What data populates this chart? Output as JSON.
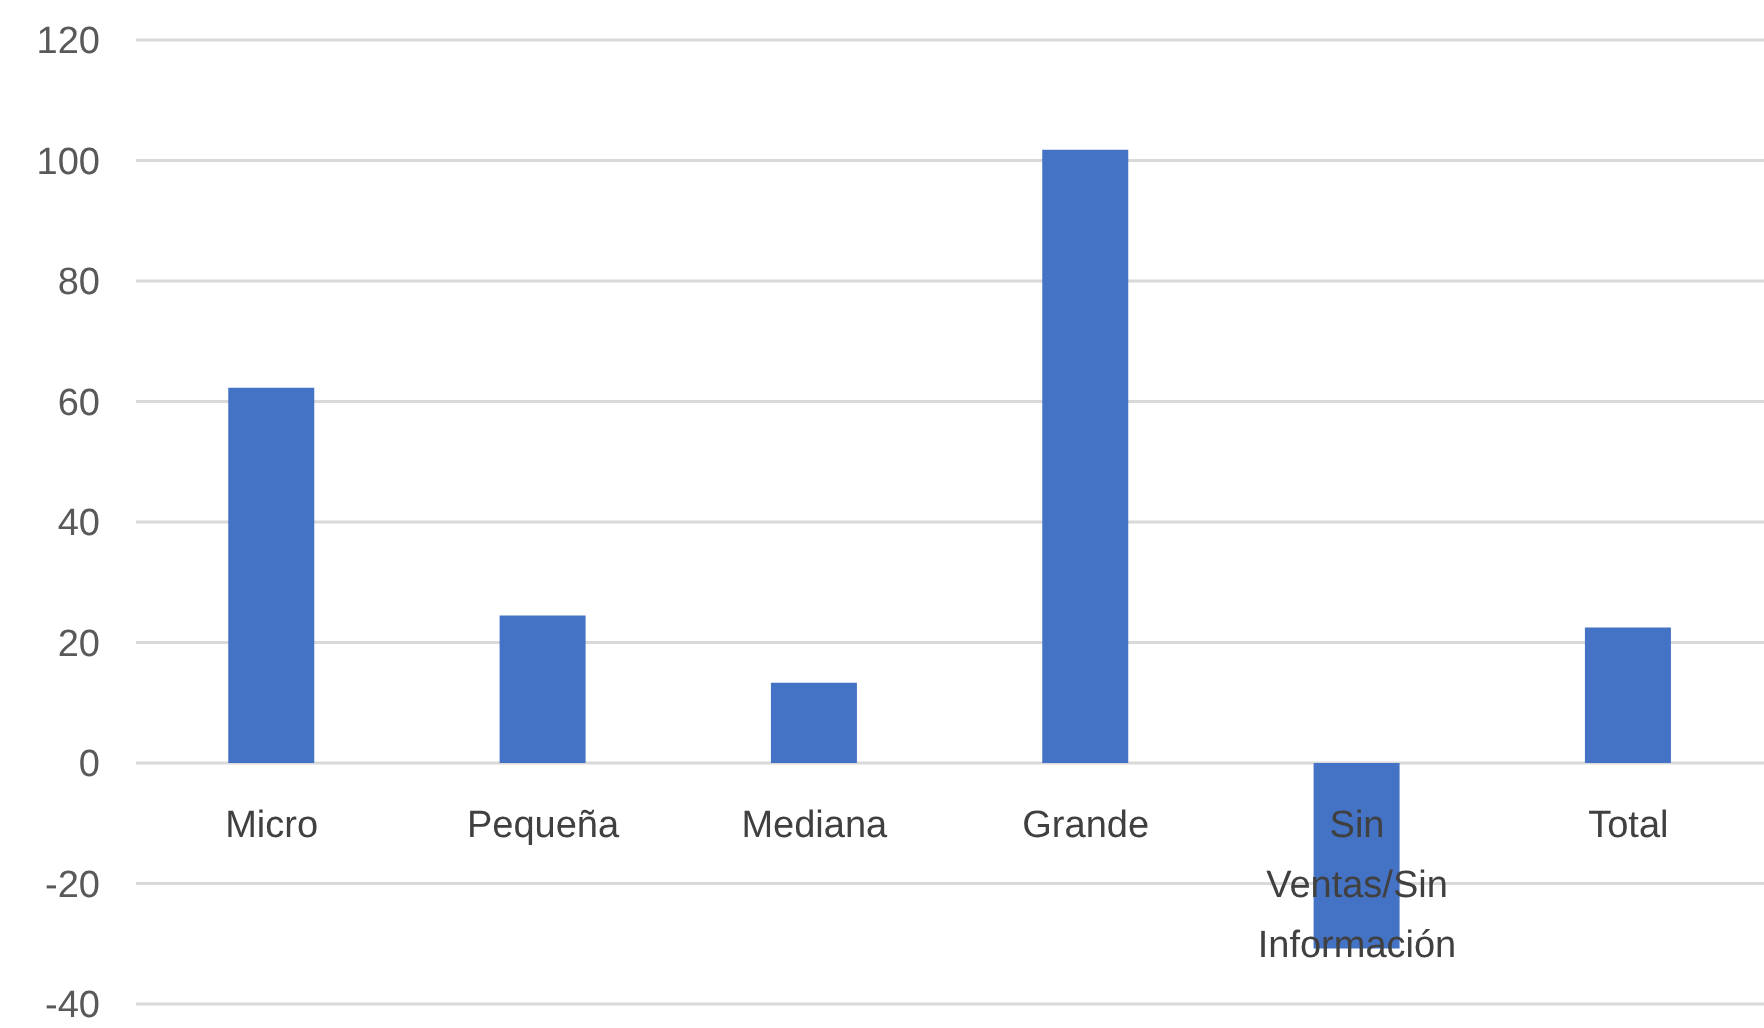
{
  "chart_data": {
    "type": "bar",
    "categories": [
      "Micro",
      "Pequeña",
      "Mediana",
      "Grande",
      "Sin Ventas/Sin Información",
      "Total"
    ],
    "values": [
      62.3,
      24.5,
      13.3,
      101.8,
      -30.8,
      22.5
    ],
    "color": "#4472c4",
    "ylim": [
      -40,
      120
    ],
    "yticks": [
      -40,
      -20,
      0,
      20,
      40,
      60,
      80,
      100,
      120
    ],
    "grid": "y"
  }
}
